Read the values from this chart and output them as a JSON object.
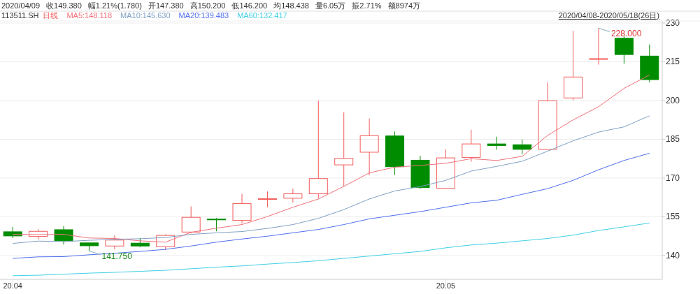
{
  "chart_data": {
    "type": "candlestick",
    "title": "113511.SH",
    "categories": [
      "20.04",
      null,
      null,
      null,
      null,
      null,
      null,
      null,
      null,
      null,
      null,
      null,
      null,
      null,
      null,
      null,
      null,
      "20.05",
      null,
      null,
      null,
      null,
      null,
      null,
      null,
      null
    ],
    "series": [
      {
        "name": "日线",
        "color": "#f25a5a",
        "colors": [
          "#008c00",
          "#f25a5a",
          "#008c00",
          "#008c00",
          "#f25a5a",
          "#008c00",
          "#f25a5a",
          "#f25a5a",
          "#008c00",
          "#f25a5a",
          "#f25a5a",
          "#f25a5a",
          "#f25a5a",
          "#f25a5a",
          "#f25a5a",
          "#008c00",
          "#008c00",
          "#f25a5a",
          "#f25a5a",
          "#008c00",
          "#008c00",
          "#f25a5a",
          "#f25a5a",
          "#f25a5a",
          "#008c00",
          "#008c00"
        ],
        "ohlc": [
          [
            149.2,
            151.1,
            146.8,
            147.6
          ],
          [
            147.38,
            150.2,
            146.2,
            149.38
          ],
          [
            150.0,
            151.4,
            144.3,
            145.7
          ],
          [
            144.9,
            144.9,
            141.75,
            143.8
          ],
          [
            143.7,
            147.8,
            142.4,
            146.0
          ],
          [
            144.8,
            146.8,
            143.2,
            143.7
          ],
          [
            143.4,
            148.2,
            142.2,
            147.8
          ],
          [
            149.1,
            159.0,
            148.6,
            154.8
          ],
          [
            154.1,
            154.5,
            149.4,
            153.9
          ],
          [
            153.6,
            163.9,
            152.4,
            160.1
          ],
          [
            161.8,
            164.8,
            158.7,
            162.0
          ],
          [
            162.2,
            165.9,
            160.5,
            163.9
          ],
          [
            163.9,
            200.0,
            162.1,
            169.8
          ],
          [
            175.1,
            195.4,
            166.8,
            177.6
          ],
          [
            180.0,
            193.0,
            171.2,
            186.4
          ],
          [
            186.3,
            188.0,
            171.2,
            174.4
          ],
          [
            176.9,
            178.6,
            165.9,
            166.3
          ],
          [
            166.0,
            181.1,
            166.0,
            177.8
          ],
          [
            178.0,
            188.7,
            176.3,
            183.2
          ],
          [
            183.2,
            186.0,
            181.0,
            182.6
          ],
          [
            182.9,
            184.9,
            179.2,
            181.1
          ],
          [
            181.1,
            207.0,
            181.1,
            199.9
          ],
          [
            201.0,
            227.0,
            200.2,
            209.1
          ],
          [
            216.0,
            228.0,
            213.9,
            216.2
          ],
          [
            224.1,
            224.9,
            214.3,
            217.8
          ],
          [
            217.2,
            221.7,
            207.1,
            208.1
          ]
        ]
      },
      {
        "name": "MA5:148.118",
        "type": "line",
        "color": "#f0707a",
        "values": [
          148.2,
          148.1,
          148.2,
          146.8,
          146.6,
          145.7,
          145.2,
          149.0,
          150.6,
          152.0,
          155.1,
          158.7,
          161.9,
          166.8,
          172.0,
          174.2,
          174.9,
          175.7,
          177.5,
          176.8,
          178.4,
          186.5,
          192.5,
          197.6,
          204.7,
          209.9
        ]
      },
      {
        "name": "MA10:145.630",
        "type": "line",
        "color": "#7fa0c4",
        "values": [
          144.7,
          145.6,
          145.4,
          145.9,
          146.3,
          146.5,
          147.0,
          148.2,
          148.8,
          149.3,
          150.5,
          152.0,
          154.4,
          157.8,
          161.9,
          165.0,
          166.7,
          169.1,
          172.7,
          174.5,
          176.5,
          180.4,
          184.4,
          187.8,
          189.8,
          194.1
        ]
      },
      {
        "name": "MA20:139.483",
        "type": "line",
        "color": "#4f6ff0",
        "values": [
          138.9,
          139.5,
          139.6,
          140.3,
          140.9,
          141.6,
          142.4,
          143.7,
          145.2,
          146.4,
          147.5,
          148.8,
          150.1,
          152.0,
          154.2,
          155.6,
          157.0,
          158.7,
          160.4,
          161.4,
          163.7,
          165.9,
          169.1,
          173.2,
          176.8,
          179.6
        ]
      },
      {
        "name": "MA60:132.417",
        "type": "line",
        "color": "#3fd0e6",
        "values": [
          132.2,
          132.4,
          132.8,
          133.2,
          133.5,
          133.9,
          134.3,
          134.9,
          135.5,
          136.0,
          136.7,
          137.3,
          138.0,
          138.9,
          139.8,
          140.7,
          141.6,
          143.0,
          144.1,
          144.8,
          145.7,
          146.6,
          147.9,
          149.7,
          151.1,
          152.6
        ]
      }
    ],
    "ylim": [
      130.8,
      230.8
    ],
    "yticks": [
      140,
      155,
      170,
      185,
      200,
      215,
      230
    ],
    "grid": "y",
    "legend": "top left",
    "annotations": [
      "2020/04/09",
      "收149.380",
      "幅1.21%(1.780)",
      "开147.380",
      "高150.200",
      "低146.200",
      "均148.438",
      "量6.05万",
      "振2.71%",
      "额8974万",
      "2020/04/08-2020/05/18(26日)",
      {
        "text": "141.750",
        "y": 141.75
      },
      "228.000"
    ]
  }
}
